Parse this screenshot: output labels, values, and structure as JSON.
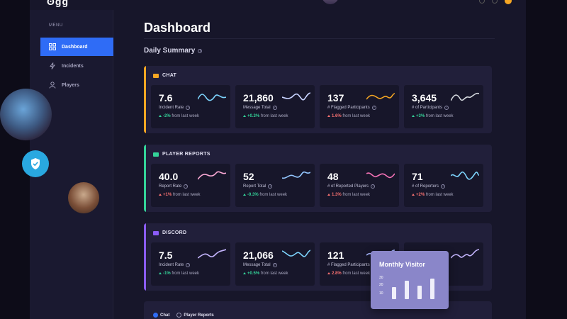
{
  "app": {
    "logo_text": "ʘgg"
  },
  "sidebar": {
    "menu_label": "MENU",
    "items": [
      {
        "label": "Dashboard",
        "icon": "grid-icon",
        "active": true
      },
      {
        "label": "Incidents",
        "icon": "bolt-icon",
        "active": false
      },
      {
        "label": "Players",
        "icon": "user-icon",
        "active": false
      }
    ]
  },
  "main": {
    "title": "Dashboard",
    "section_title": "Daily Summary",
    "panels": [
      {
        "name": "CHAT",
        "color": "#f5a623",
        "cards": [
          {
            "value": "7.6",
            "label": "Incident Rate",
            "pct": "-2%",
            "dir": "up",
            "suffix": "from last week",
            "spark_color": "#7dd3fc"
          },
          {
            "value": "21,860",
            "label": "Message Total",
            "pct": "+0.3%",
            "dir": "up",
            "suffix": "from last week",
            "spark_color": "#c7d2fe"
          },
          {
            "value": "137",
            "label": "# Flagged Participants",
            "pct": "1.6%",
            "dir": "down",
            "suffix": "from last week",
            "spark_color": "#f5a623"
          },
          {
            "value": "3,645",
            "label": "# of Participants",
            "pct": "+3%",
            "dir": "up",
            "suffix": "from last week",
            "spark_color": "#d1d5db"
          }
        ]
      },
      {
        "name": "PLAYER REPORTS",
        "color": "#34d399",
        "cards": [
          {
            "value": "40.0",
            "label": "Report Rate",
            "pct": "+1%",
            "dir": "down",
            "suffix": "from last week",
            "spark_color": "#f9a8d4"
          },
          {
            "value": "52",
            "label": "Report Total",
            "pct": "-0.3%",
            "dir": "up",
            "suffix": "from last week",
            "spark_color": "#93c5fd"
          },
          {
            "value": "48",
            "label": "# of Reported Players",
            "pct": "1.3%",
            "dir": "down",
            "suffix": "from last week",
            "spark_color": "#f472b6"
          },
          {
            "value": "71",
            "label": "# of Reporters",
            "pct": "+2%",
            "dir": "down",
            "suffix": "from last week",
            "spark_color": "#7dd3fc"
          }
        ]
      },
      {
        "name": "DISCORD",
        "color": "#8b5cf6",
        "cards": [
          {
            "value": "7.5",
            "label": "Incident Rate",
            "pct": "-1%",
            "dir": "up",
            "suffix": "from last week",
            "spark_color": "#c4b5fd"
          },
          {
            "value": "21,066",
            "label": "Message Total",
            "pct": "+0.5%",
            "dir": "up",
            "suffix": "from last week",
            "spark_color": "#7dd3fc"
          },
          {
            "value": "121",
            "label": "# Flagged Participants",
            "pct": "2.8%",
            "dir": "down",
            "suffix": "from last week",
            "spark_color": "#a5b4fc"
          },
          {
            "value": "",
            "label": "",
            "pct": "",
            "dir": "up",
            "suffix": "",
            "spark_color": "#c4b5fd"
          }
        ]
      }
    ],
    "filters": [
      {
        "label": "Chat",
        "checked": true
      },
      {
        "label": "Player Reports",
        "checked": false
      }
    ]
  },
  "visitor": {
    "title": "Monthly Visitor",
    "axis": [
      "30",
      "20",
      "10"
    ],
    "bars": [
      14,
      22,
      16,
      24
    ]
  }
}
